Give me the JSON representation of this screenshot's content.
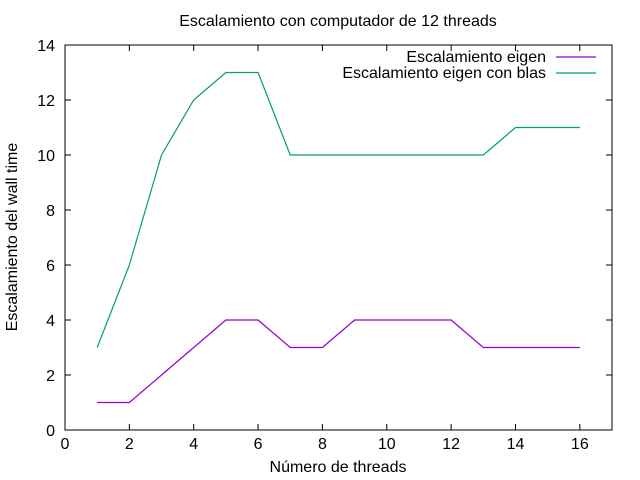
{
  "chart_data": {
    "type": "line",
    "title": "Escalamiento con computador de 12 threads",
    "xlabel": "Número de threads",
    "ylabel": "Escalamiento del wall time",
    "xlim": [
      0,
      17
    ],
    "ylim": [
      0,
      14
    ],
    "xticks": [
      0,
      2,
      4,
      6,
      8,
      10,
      12,
      14,
      16
    ],
    "yticks": [
      0,
      2,
      4,
      6,
      8,
      10,
      12,
      14
    ],
    "grid": false,
    "legend_position": "top-right",
    "x": [
      1,
      2,
      3,
      4,
      5,
      6,
      7,
      8,
      9,
      10,
      11,
      12,
      13,
      14,
      15,
      16
    ],
    "series": [
      {
        "name": "Escalamiento eigen",
        "color": "#9400d3",
        "values": [
          1,
          1,
          2,
          3,
          4,
          4,
          3,
          3,
          4,
          4,
          4,
          4,
          3,
          3,
          3,
          3
        ]
      },
      {
        "name": "Escalamiento eigen con blas",
        "color": "#009e73",
        "values": [
          3,
          6,
          10,
          12,
          13,
          13,
          10,
          10,
          10,
          10,
          10,
          10,
          10,
          11,
          11,
          11
        ]
      }
    ]
  }
}
